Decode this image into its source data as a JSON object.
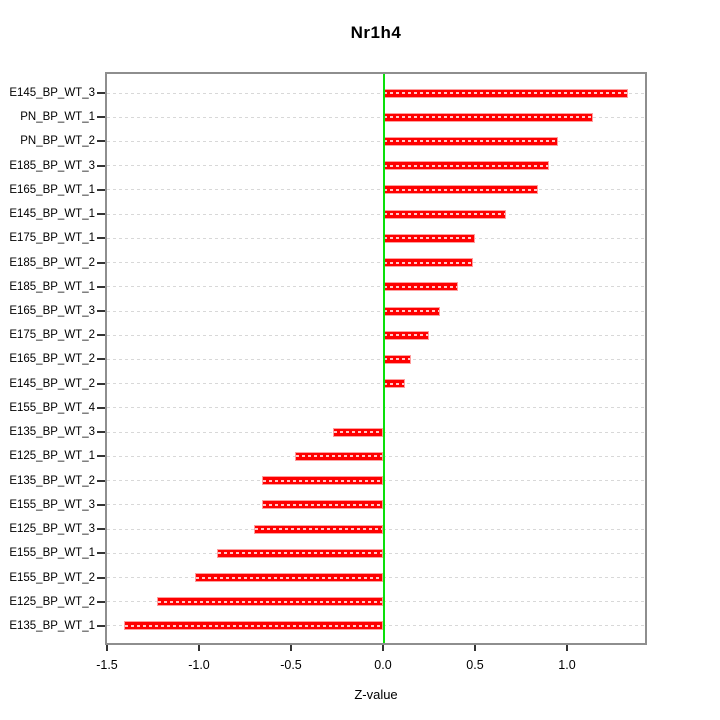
{
  "title": "Nr1h4",
  "chart_data": {
    "type": "bar",
    "orientation": "horizontal",
    "title": "Nr1h4",
    "xlabel": "Z-value",
    "ylabel": "",
    "xlim": [
      -1.5,
      1.42
    ],
    "grid": true,
    "legend": false,
    "zero_line": 0.0,
    "categories": [
      "E145_BP_WT_3",
      "PN_BP_WT_1",
      "PN_BP_WT_2",
      "E185_BP_WT_3",
      "E165_BP_WT_1",
      "E145_BP_WT_1",
      "E175_BP_WT_1",
      "E185_BP_WT_2",
      "E185_BP_WT_1",
      "E165_BP_WT_3",
      "E175_BP_WT_2",
      "E165_BP_WT_2",
      "E145_BP_WT_2",
      "E155_BP_WT_4",
      "E135_BP_WT_3",
      "E125_BP_WT_1",
      "E135_BP_WT_2",
      "E155_BP_WT_3",
      "E125_BP_WT_3",
      "E155_BP_WT_1",
      "E155_BP_WT_2",
      "E125_BP_WT_2",
      "E135_BP_WT_1"
    ],
    "values": [
      1.33,
      1.14,
      0.95,
      0.9,
      0.84,
      0.67,
      0.5,
      0.49,
      0.41,
      0.31,
      0.25,
      0.15,
      0.12,
      0.01,
      -0.27,
      -0.48,
      -0.66,
      -0.66,
      -0.7,
      -0.9,
      -1.02,
      -1.23,
      -1.41
    ],
    "xticks": [
      -1.5,
      -1.0,
      -0.5,
      0.0,
      0.5,
      1.0
    ],
    "xtick_labels": [
      "-1.5",
      "-1.0",
      "-0.5",
      "0.0",
      "0.5",
      "1.0"
    ],
    "colors": {
      "bar_fill": "#fe0000",
      "bar_border": "#ff9d9d",
      "zero_line": "#0ae00a",
      "gridline": "#d8d8d8",
      "plot_border": "#8e8e8e",
      "text": "#000000"
    }
  }
}
